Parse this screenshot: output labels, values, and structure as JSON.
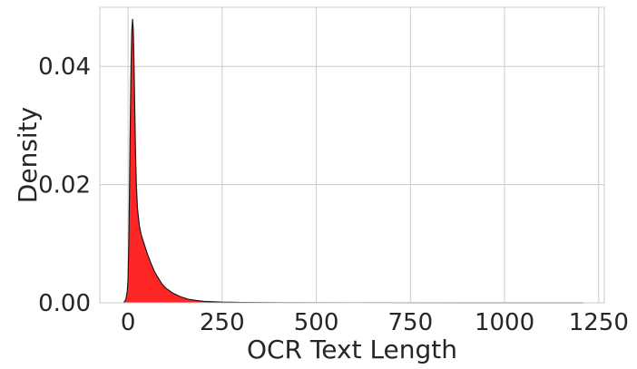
{
  "chart_data": {
    "type": "area",
    "title": "",
    "xlabel": "OCR Text Length",
    "ylabel": "Density",
    "xlim": [
      -75,
      1265
    ],
    "ylim": [
      0,
      0.05
    ],
    "x_ticks": [
      0,
      250,
      500,
      750,
      1000,
      1250
    ],
    "x_tick_labels": [
      "0",
      "250",
      "500",
      "750",
      "1000",
      "1250"
    ],
    "y_ticks": [
      0.0,
      0.02,
      0.04
    ],
    "y_tick_labels": [
      "0.00",
      "0.02",
      "0.04"
    ],
    "grid": true,
    "series": [
      {
        "fill_color": "#ff1a1a",
        "line_color": "#1a1a1a",
        "points": [
          [
            -12,
            0.0
          ],
          [
            -6,
            0.0005
          ],
          [
            -2,
            0.002
          ],
          [
            0,
            0.004
          ],
          [
            2,
            0.01
          ],
          [
            4,
            0.02
          ],
          [
            6,
            0.031
          ],
          [
            8,
            0.04
          ],
          [
            10,
            0.046
          ],
          [
            12,
            0.048
          ],
          [
            14,
            0.046
          ],
          [
            16,
            0.04
          ],
          [
            18,
            0.032
          ],
          [
            20,
            0.025
          ],
          [
            22,
            0.02
          ],
          [
            25,
            0.016
          ],
          [
            30,
            0.013
          ],
          [
            35,
            0.0115
          ],
          [
            40,
            0.0105
          ],
          [
            50,
            0.0085
          ],
          [
            60,
            0.0068
          ],
          [
            70,
            0.0053
          ],
          [
            80,
            0.0042
          ],
          [
            90,
            0.0032
          ],
          [
            100,
            0.0025
          ],
          [
            120,
            0.0016
          ],
          [
            140,
            0.001
          ],
          [
            160,
            0.0006
          ],
          [
            180,
            0.0004
          ],
          [
            200,
            0.00025
          ],
          [
            250,
            0.00012
          ],
          [
            300,
            6e-05
          ],
          [
            400,
            3e-05
          ],
          [
            600,
            1e-05
          ],
          [
            900,
            5e-06
          ],
          [
            1210,
            0.0
          ]
        ]
      }
    ]
  }
}
